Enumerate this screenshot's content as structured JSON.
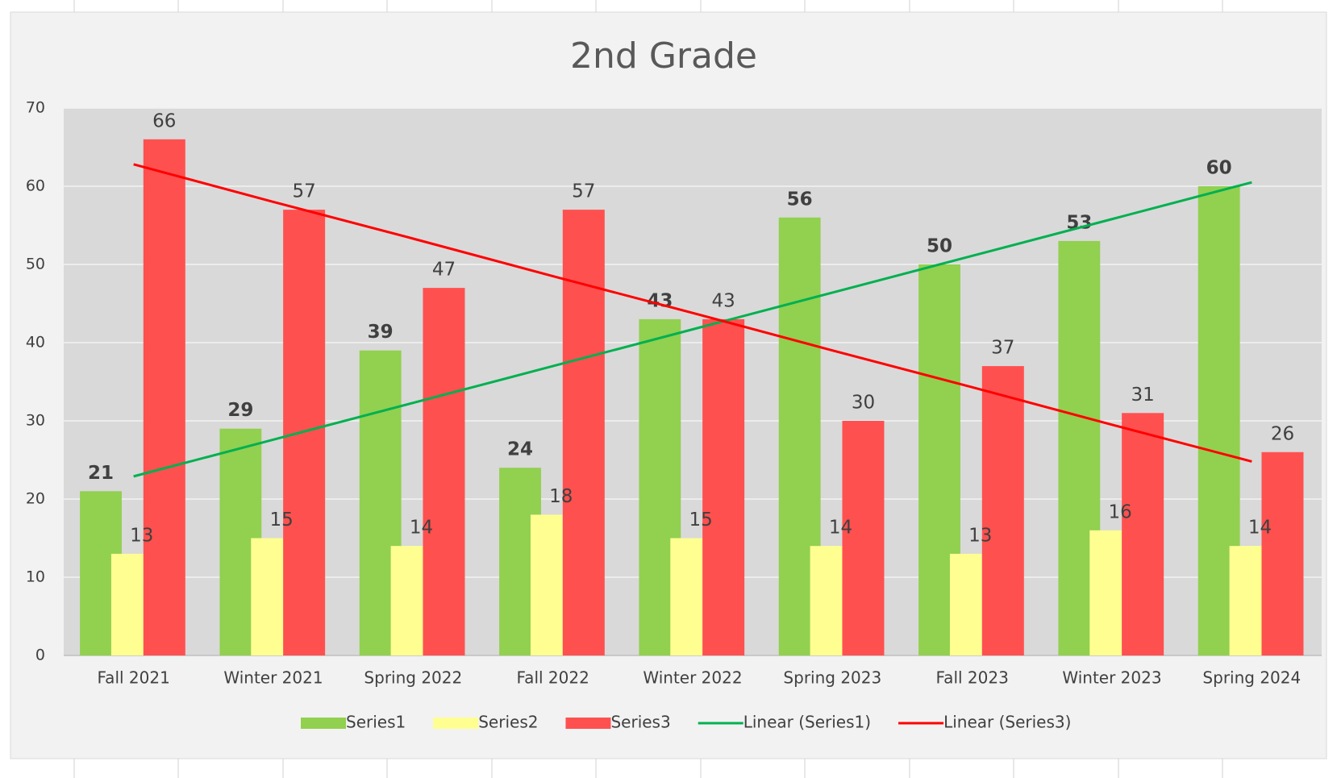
{
  "chart_data": {
    "type": "bar",
    "title": "2nd Grade",
    "categories": [
      "Fall 2021",
      "Winter 2021",
      "Spring 2022",
      "Fall 2022",
      "Winter 2022",
      "Spring 2023",
      "Fall 2023",
      "Winter 2023",
      "Spring 2024"
    ],
    "series": [
      {
        "name": "Series1",
        "color": "#92d050",
        "values": [
          21,
          29,
          39,
          24,
          43,
          56,
          50,
          53,
          60
        ]
      },
      {
        "name": "Series2",
        "color": "#ffff91",
        "values": [
          13,
          15,
          14,
          18,
          15,
          14,
          13,
          16,
          14
        ]
      },
      {
        "name": "Series3",
        "color": "#ff5050",
        "values": [
          66,
          57,
          47,
          57,
          43,
          30,
          37,
          31,
          26
        ]
      },
      {
        "name": "Linear (Series1)",
        "type": "line",
        "color": "#00b050",
        "values": [
          22.9,
          27.6,
          32.3,
          37.0,
          41.7,
          46.4,
          51.1,
          55.8,
          60.5
        ]
      },
      {
        "name": "Linear (Series3)",
        "type": "line",
        "color": "#ff0000",
        "values": [
          62.8,
          58.0,
          53.3,
          48.5,
          43.8,
          39.0,
          34.3,
          29.5,
          24.8
        ]
      }
    ],
    "ylim": [
      0,
      70
    ],
    "yticks": [
      0,
      10,
      20,
      30,
      40,
      50,
      60,
      70
    ],
    "grid": true,
    "legend": "bottom"
  }
}
